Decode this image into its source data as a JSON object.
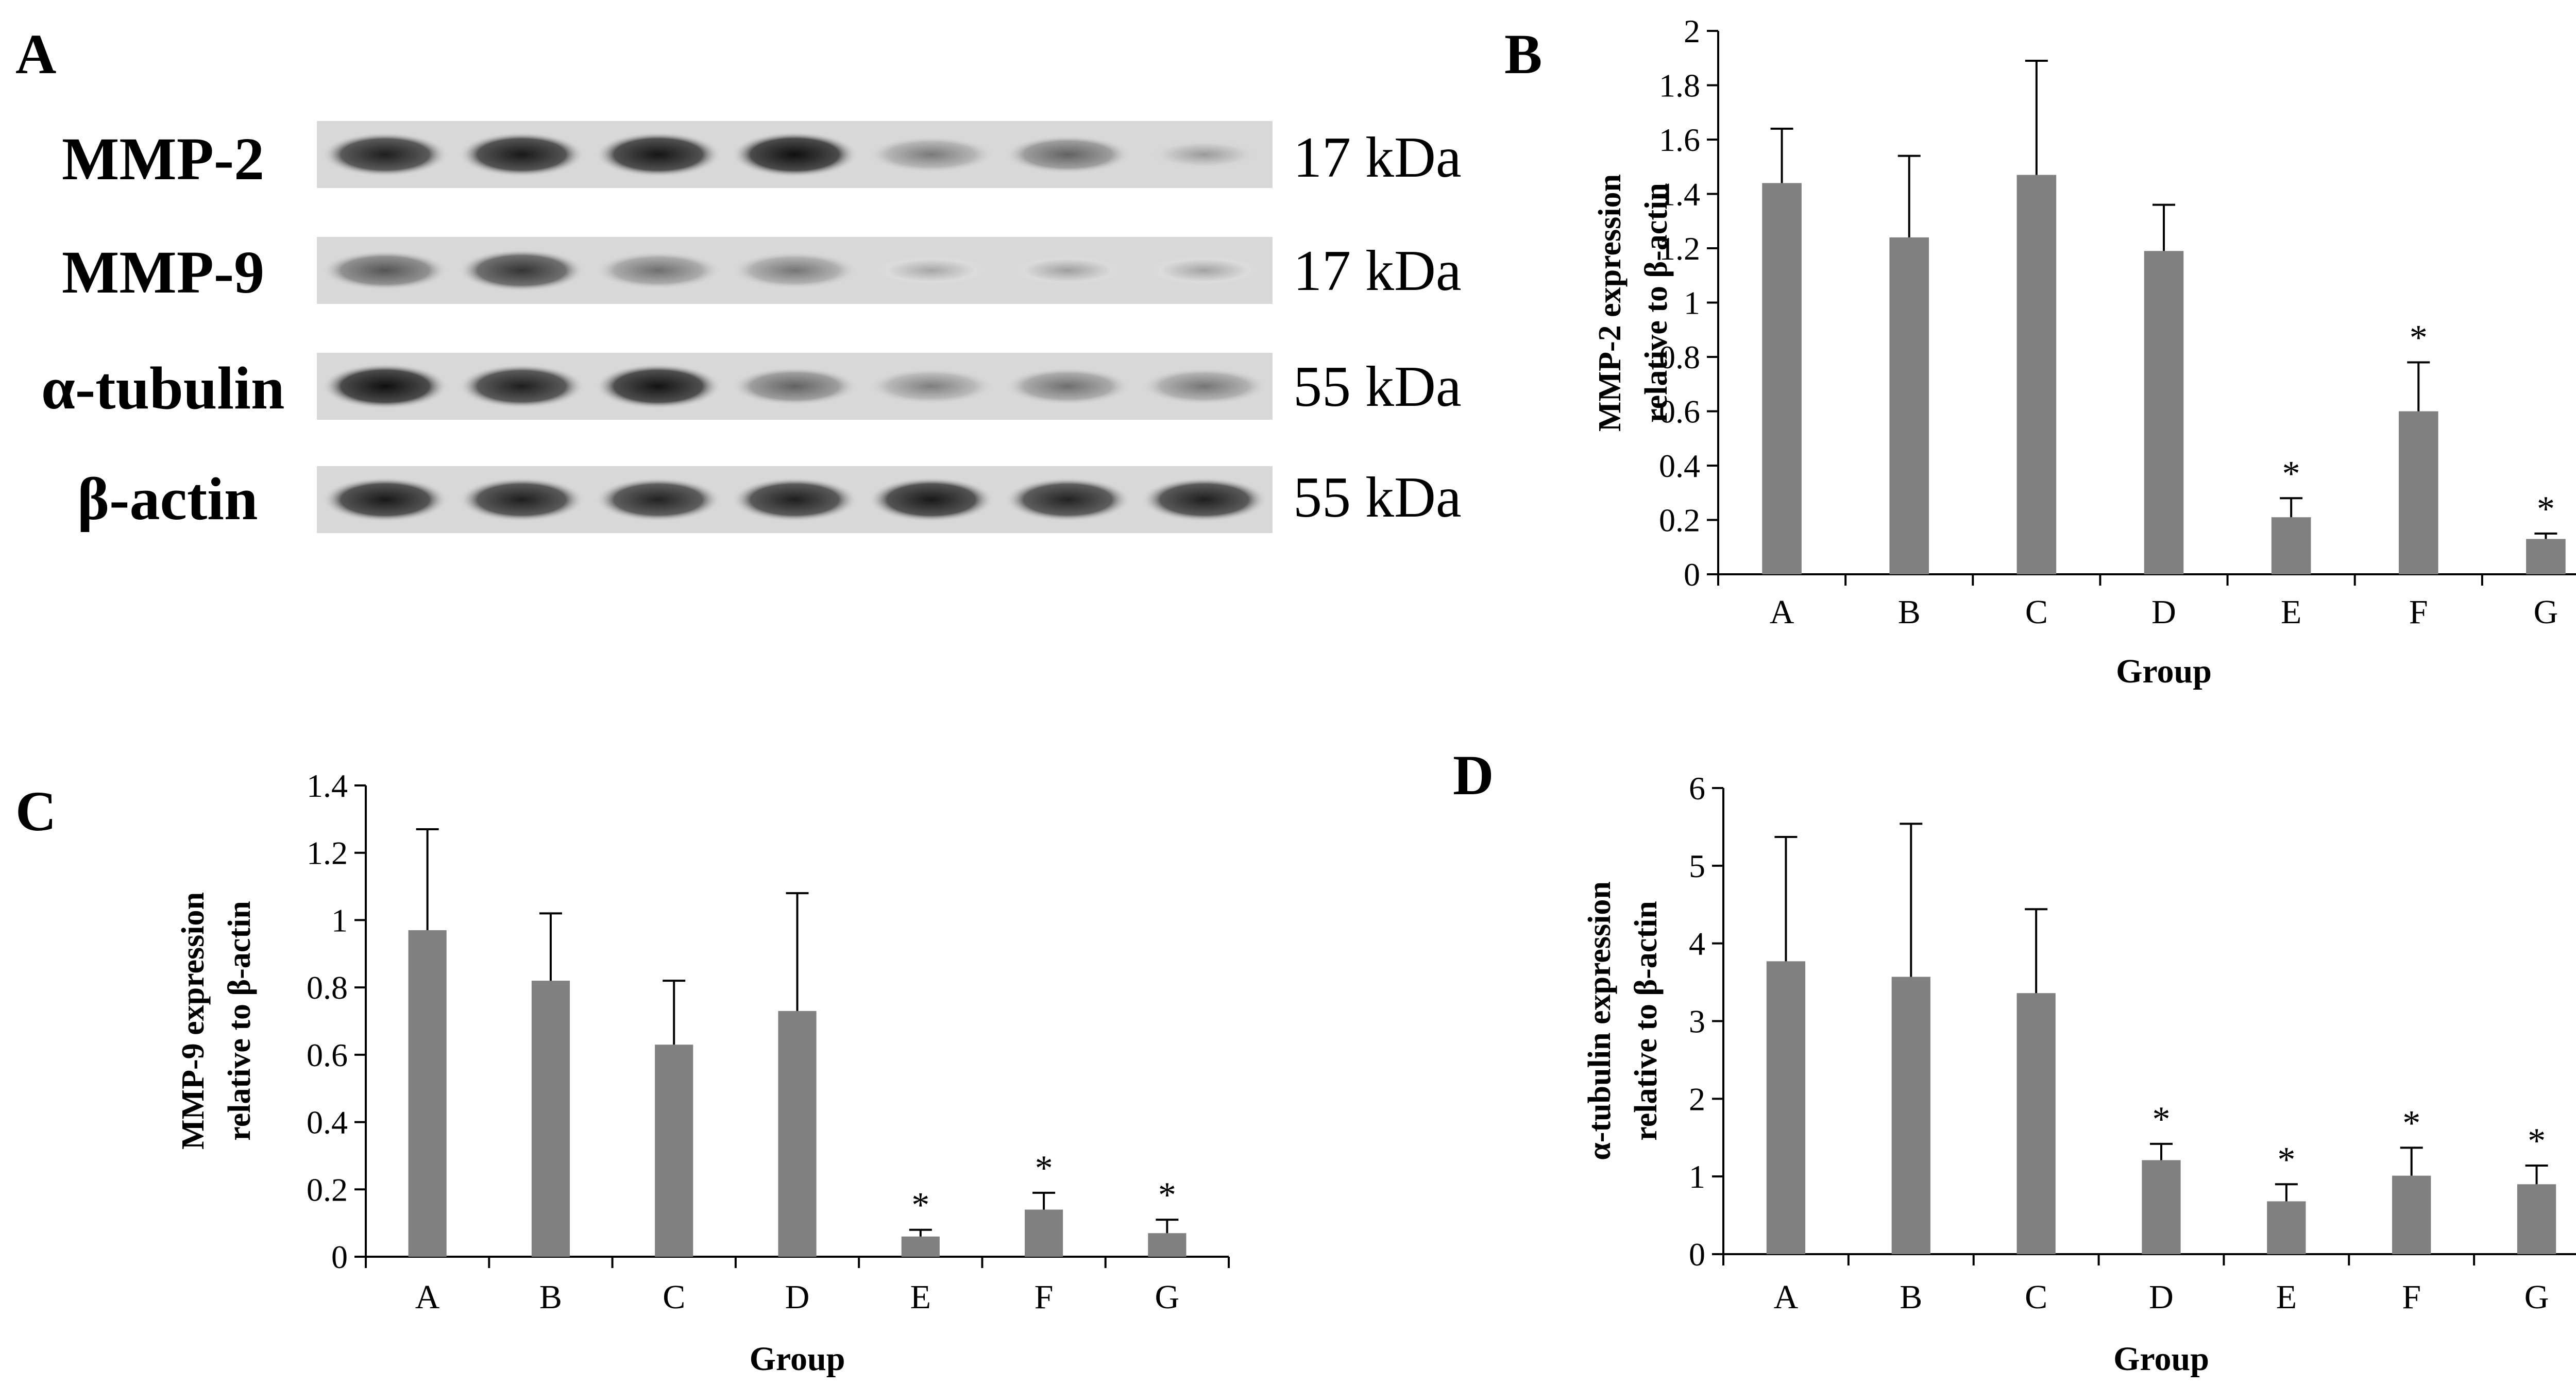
{
  "panels": {
    "a": "A",
    "b": "B",
    "c": "C",
    "d": "D"
  },
  "blot": {
    "rows": [
      {
        "label": "MMP-2",
        "kda": "17 kDa",
        "intensities": [
          0.92,
          0.95,
          0.97,
          1.0,
          0.42,
          0.55,
          0.25
        ]
      },
      {
        "label": "MMP-9",
        "kda": "17 kDa",
        "intensities": [
          0.62,
          0.8,
          0.48,
          0.45,
          0.18,
          0.22,
          0.2
        ]
      },
      {
        "label": "α-tubulin",
        "kda": "55 kDa",
        "intensities": [
          1.0,
          0.92,
          0.98,
          0.55,
          0.4,
          0.48,
          0.45
        ]
      },
      {
        "label": "β-actin",
        "kda": "55 kDa",
        "intensities": [
          0.95,
          0.92,
          0.9,
          0.92,
          0.95,
          0.9,
          0.92
        ]
      }
    ]
  },
  "chart_data": [
    {
      "panel": "B",
      "type": "bar",
      "categories": [
        "A",
        "B",
        "C",
        "D",
        "E",
        "F",
        "G"
      ],
      "values": [
        1.44,
        1.24,
        1.47,
        1.19,
        0.21,
        0.6,
        0.13
      ],
      "errors": [
        0.2,
        0.3,
        0.42,
        0.17,
        0.07,
        0.18,
        0.02
      ],
      "significant": [
        false,
        false,
        false,
        false,
        true,
        true,
        true
      ],
      "star": "*",
      "xlabel": "Group",
      "ylabel_lines": [
        "MMP-2 expression",
        "relative to β-actin"
      ],
      "ylim": [
        0,
        2
      ],
      "yticks": [
        0,
        0.2,
        0.4,
        0.6,
        0.8,
        1,
        1.2,
        1.4,
        1.6,
        1.8,
        2
      ],
      "ytick_labels": [
        "0",
        "0.2",
        "0.4",
        "0.6",
        "0.8",
        "1",
        "1.2",
        "1.4",
        "1.6",
        "1.8",
        "2"
      ],
      "bar_color": "#808080"
    },
    {
      "panel": "C",
      "type": "bar",
      "categories": [
        "A",
        "B",
        "C",
        "D",
        "E",
        "F",
        "G"
      ],
      "values": [
        0.97,
        0.82,
        0.63,
        0.73,
        0.06,
        0.14,
        0.07
      ],
      "errors": [
        0.3,
        0.2,
        0.19,
        0.35,
        0.02,
        0.05,
        0.04
      ],
      "significant": [
        false,
        false,
        false,
        false,
        true,
        true,
        true
      ],
      "star": "*",
      "xlabel": "Group",
      "ylabel_lines": [
        "MMP-9 expression",
        "relative to β-actin"
      ],
      "ylim": [
        0,
        1.4
      ],
      "yticks": [
        0,
        0.2,
        0.4,
        0.6,
        0.8,
        1,
        1.2,
        1.4
      ],
      "ytick_labels": [
        "0",
        "0.2",
        "0.4",
        "0.6",
        "0.8",
        "1",
        "1.2",
        "1.4"
      ],
      "bar_color": "#808080"
    },
    {
      "panel": "D",
      "type": "bar",
      "categories": [
        "A",
        "B",
        "C",
        "D",
        "E",
        "F",
        "G"
      ],
      "values": [
        3.77,
        3.57,
        3.36,
        1.21,
        0.68,
        1.01,
        0.9
      ],
      "errors": [
        1.6,
        1.97,
        1.08,
        0.21,
        0.22,
        0.36,
        0.24
      ],
      "significant": [
        false,
        false,
        false,
        true,
        true,
        true,
        true
      ],
      "star": "*",
      "xlabel": "Group",
      "ylabel_lines": [
        "α-tubulin expression",
        "relative to β-actin"
      ],
      "ylim": [
        0,
        6
      ],
      "yticks": [
        0,
        1,
        2,
        3,
        4,
        5,
        6
      ],
      "ytick_labels": [
        "0",
        "1",
        "2",
        "3",
        "4",
        "5",
        "6"
      ],
      "bar_color": "#808080"
    }
  ]
}
